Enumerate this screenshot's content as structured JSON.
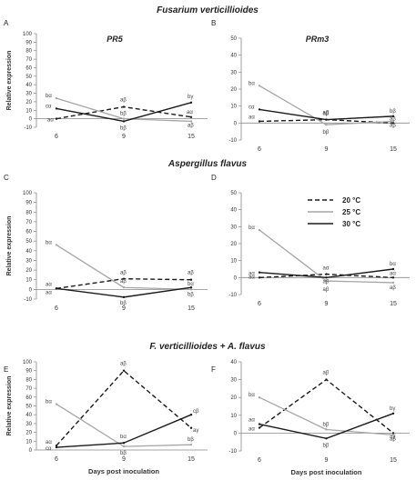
{
  "section_titles": [
    "Fusarium verticillioides",
    "Aspergillus flavus",
    "F. verticillioides + A. flavus"
  ],
  "legend": [
    {
      "label": "20 °C",
      "color": "#1a1a1a",
      "dash": "dashed"
    },
    {
      "label": "25 °C",
      "color": "#a6a6a6",
      "dash": "solid"
    },
    {
      "label": "30 °C",
      "color": "#1a1a1a",
      "dash": "solid"
    }
  ],
  "chart_data": [
    {
      "panel": "A",
      "type": "line",
      "title": "PR5",
      "x": [
        "6",
        "9",
        "15"
      ],
      "ylabel": "Relative expression",
      "xlabel": "",
      "ylim": [
        -10,
        100
      ],
      "yticks": [
        -10,
        0,
        10,
        20,
        30,
        40,
        50,
        60,
        70,
        80,
        90,
        100
      ],
      "series": [
        {
          "values": [
            0,
            14,
            2
          ],
          "labels": [
            "aα",
            "aβ",
            "aα"
          ]
        },
        {
          "values": [
            24,
            0,
            -3
          ],
          "labels": [
            "bα",
            "bβ",
            "aβ"
          ]
        },
        {
          "values": [
            12,
            -3,
            19
          ],
          "labels": [
            "cα",
            "bβ",
            "bγ"
          ]
        }
      ]
    },
    {
      "panel": "B",
      "type": "line",
      "title": "PRm3",
      "x": [
        "6",
        "9",
        "15"
      ],
      "ylabel": "",
      "xlabel": "",
      "ylim": [
        -10,
        50
      ],
      "yticks": [
        -10,
        0,
        10,
        20,
        30,
        40,
        50
      ],
      "series": [
        {
          "values": [
            1,
            2,
            0
          ],
          "labels": [
            "aα",
            "aβ",
            "aβ"
          ]
        },
        {
          "values": [
            22,
            -1,
            1
          ],
          "labels": [
            "bα",
            "bβ",
            "aβ"
          ]
        },
        {
          "values": [
            8,
            2,
            4
          ],
          "labels": [
            "cα",
            "aβ",
            "bβ"
          ]
        }
      ]
    },
    {
      "panel": "C",
      "type": "line",
      "title": "",
      "x": [
        "6",
        "9",
        "15"
      ],
      "ylabel": "Relative expression",
      "xlabel": "",
      "ylim": [
        -10,
        100
      ],
      "yticks": [
        -10,
        0,
        10,
        20,
        30,
        40,
        50,
        60,
        70,
        80,
        90,
        100
      ],
      "series": [
        {
          "values": [
            1,
            11,
            10
          ],
          "labels": [
            "aα",
            "aβ",
            "aβ"
          ]
        },
        {
          "values": [
            46,
            2,
            0
          ],
          "labels": [
            "bα",
            "aβ",
            "bβ"
          ]
        },
        {
          "values": [
            1,
            -8,
            2
          ],
          "labels": [
            "aα",
            "bβ",
            "bα"
          ]
        }
      ]
    },
    {
      "panel": "D",
      "type": "line",
      "title": "",
      "x": [
        "6",
        "9",
        "15"
      ],
      "ylabel": "",
      "xlabel": "",
      "ylim": [
        -10,
        50
      ],
      "yticks": [
        -10,
        0,
        10,
        20,
        30,
        40,
        50
      ],
      "series": [
        {
          "values": [
            0,
            2,
            0
          ],
          "labels": [
            "aα",
            "aα",
            "aα"
          ]
        },
        {
          "values": [
            28,
            -2,
            -3
          ],
          "labels": [
            "bα",
            "aβ",
            "aβ"
          ]
        },
        {
          "values": [
            3,
            0,
            5
          ],
          "labels": [
            "aα",
            "aβ",
            "bα"
          ]
        }
      ]
    },
    {
      "panel": "E",
      "type": "line",
      "title": "",
      "x": [
        "6",
        "9",
        "15"
      ],
      "ylabel": "Relative expression",
      "xlabel": "Days post inoculation",
      "ylim": [
        0,
        100
      ],
      "yticks": [
        0,
        10,
        20,
        30,
        40,
        50,
        60,
        70,
        80,
        90,
        100
      ],
      "series": [
        {
          "values": [
            5,
            90,
            25
          ],
          "labels": [
            "aα",
            "aβ",
            "aγ"
          ]
        },
        {
          "values": [
            52,
            4,
            6
          ],
          "labels": [
            "bα",
            "bβ",
            "bβ"
          ]
        },
        {
          "values": [
            3,
            8,
            40
          ],
          "labels": [
            "cα",
            "bα",
            "cβ"
          ]
        }
      ]
    },
    {
      "panel": "F",
      "type": "line",
      "title": "",
      "x": [
        "6",
        "9",
        "15"
      ],
      "ylabel": "",
      "xlabel": "Days post inoculation",
      "ylim": [
        -10,
        40
      ],
      "yticks": [
        -10,
        0,
        10,
        20,
        30,
        40
      ],
      "series": [
        {
          "values": [
            3,
            30,
            0
          ],
          "labels": [
            "aα",
            "aβ",
            "aγ"
          ]
        },
        {
          "values": [
            20,
            2,
            -1
          ],
          "labels": [
            "bα",
            "bβ",
            "aβ"
          ]
        },
        {
          "values": [
            5,
            -3,
            11
          ],
          "labels": [
            "aα",
            "bβ",
            "bγ"
          ]
        }
      ]
    }
  ]
}
